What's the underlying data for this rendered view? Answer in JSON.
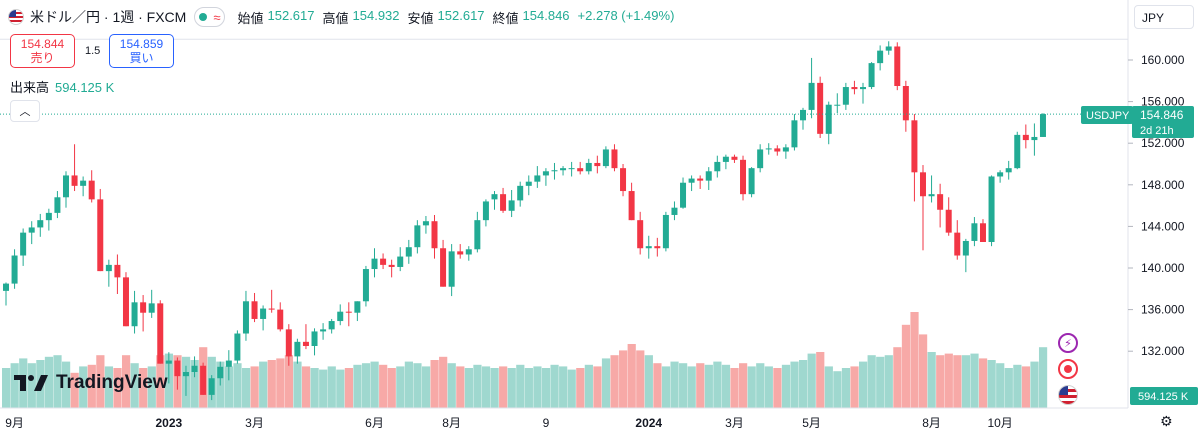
{
  "header": {
    "title": "米ドル／円 · 1週 · FXCM",
    "open_label": "始値",
    "open_value": "152.617",
    "high_label": "高値",
    "high_value": "154.932",
    "low_label": "安値",
    "low_value": "152.617",
    "close_label": "終値",
    "close_value": "154.846",
    "change": "+2.278 (+1.49%)"
  },
  "trade": {
    "sell_price": "154.844",
    "sell_label": "売り",
    "spread": "1.5",
    "buy_price": "154.859",
    "buy_label": "買い"
  },
  "volume": {
    "label": "出来高",
    "value": "594.125 K"
  },
  "currency": "JPY",
  "price_tag": {
    "symbol": "USDJPY",
    "price": "154.846",
    "countdown": "2d 21h"
  },
  "volume_tag": "594.125 K",
  "brand": "TradingView",
  "icons": {
    "collapse": "chevron-up-icon",
    "lightning": "lightning-icon",
    "record": "record-icon",
    "flag": "us-flag-icon",
    "settings": "gear-icon"
  },
  "colors": {
    "up": "#22ab94",
    "down": "#f23645",
    "vol_up": "#9fd8cf",
    "vol_down": "#f7a9a7"
  },
  "chart_data": {
    "type": "candlestick",
    "ylim": [
      128,
      162
    ],
    "y_ticks": [
      "160.000",
      "156.000",
      "152.000",
      "148.000",
      "144.000",
      "140.000",
      "136.000",
      "132.000"
    ],
    "x_ticks": [
      "9月",
      "2023",
      "3月",
      "6月",
      "8月",
      "9",
      "2024",
      "3月",
      "5月",
      "8月",
      "10月"
    ],
    "candles": [
      [
        137.8,
        138.6,
        136.4,
        138.5,
        2.5
      ],
      [
        138.5,
        141.8,
        138.0,
        141.2,
        2.8
      ],
      [
        141.2,
        143.8,
        140.2,
        143.4,
        3.1
      ],
      [
        143.4,
        144.5,
        142.3,
        143.9,
        2.8
      ],
      [
        143.9,
        145.2,
        143.0,
        144.6,
        3.0
      ],
      [
        144.6,
        145.7,
        143.6,
        145.3,
        3.2
      ],
      [
        145.3,
        147.4,
        144.8,
        146.8,
        3.3
      ],
      [
        146.8,
        149.3,
        145.8,
        148.9,
        2.9
      ],
      [
        148.9,
        151.9,
        147.4,
        147.9,
        2.2
      ],
      [
        147.9,
        148.8,
        146.9,
        148.4,
        2.6
      ],
      [
        148.4,
        149.4,
        146.3,
        146.6,
        2.7
      ],
      [
        146.6,
        147.6,
        139.7,
        139.7,
        3.3
      ],
      [
        139.7,
        140.8,
        138.2,
        140.3,
        2.6
      ],
      [
        140.3,
        141.3,
        137.5,
        139.1,
        2.5
      ],
      [
        139.1,
        139.6,
        134.4,
        134.4,
        3.3
      ],
      [
        134.4,
        137.8,
        133.7,
        136.7,
        2.8
      ],
      [
        136.7,
        137.4,
        133.9,
        135.7,
        2.5
      ],
      [
        135.7,
        137.9,
        135.2,
        136.6,
        2.6
      ],
      [
        136.6,
        136.9,
        130.8,
        130.8,
        3.3
      ],
      [
        130.8,
        131.9,
        128.9,
        131.1,
        3.4
      ],
      [
        131.1,
        131.4,
        128.3,
        129.6,
        3.3
      ],
      [
        129.6,
        130.6,
        127.7,
        130.0,
        3.2
      ],
      [
        130.0,
        131.5,
        129.5,
        130.6,
        3.0
      ],
      [
        130.6,
        130.9,
        127.8,
        127.8,
        3.8
      ],
      [
        127.8,
        129.7,
        127.3,
        129.4,
        3.2
      ],
      [
        129.4,
        131.0,
        128.7,
        130.5,
        2.9
      ],
      [
        130.5,
        132.1,
        129.2,
        131.1,
        2.6
      ],
      [
        131.1,
        134.0,
        130.8,
        133.7,
        2.8
      ],
      [
        133.7,
        137.8,
        133.0,
        136.8,
        2.5
      ],
      [
        136.8,
        137.6,
        134.8,
        135.1,
        2.6
      ],
      [
        135.1,
        136.4,
        134.0,
        136.1,
        2.9
      ],
      [
        136.1,
        137.9,
        135.7,
        136.0,
        3.0
      ],
      [
        136.0,
        136.7,
        133.9,
        134.1,
        3.1
      ],
      [
        134.1,
        134.6,
        130.6,
        131.5,
        3.3
      ],
      [
        131.5,
        133.2,
        130.8,
        132.9,
        2.9
      ],
      [
        132.9,
        134.6,
        132.2,
        132.5,
        2.6
      ],
      [
        132.5,
        134.2,
        131.6,
        133.9,
        2.5
      ],
      [
        133.9,
        134.7,
        133.1,
        134.1,
        2.4
      ],
      [
        134.1,
        135.1,
        133.7,
        134.9,
        2.6
      ],
      [
        134.9,
        136.5,
        134.5,
        135.8,
        2.4
      ],
      [
        135.8,
        136.7,
        134.4,
        135.7,
        2.5
      ],
      [
        135.7,
        136.8,
        134.9,
        136.8,
        2.7
      ],
      [
        136.8,
        140.2,
        136.3,
        139.9,
        2.8
      ],
      [
        139.9,
        141.9,
        139.1,
        140.9,
        2.9
      ],
      [
        140.9,
        141.4,
        139.9,
        140.3,
        2.7
      ],
      [
        140.3,
        140.8,
        139.1,
        140.1,
        2.5
      ],
      [
        140.1,
        142.0,
        139.7,
        141.1,
        2.6
      ],
      [
        141.1,
        142.7,
        140.4,
        142.0,
        2.9
      ],
      [
        142.0,
        144.6,
        141.4,
        144.1,
        2.8
      ],
      [
        144.1,
        145.0,
        143.3,
        144.5,
        2.6
      ],
      [
        144.5,
        145.1,
        140.9,
        141.9,
        3.0
      ],
      [
        141.9,
        142.7,
        138.2,
        138.2,
        3.2
      ],
      [
        138.2,
        142.3,
        137.3,
        141.6,
        2.8
      ],
      [
        141.6,
        142.3,
        140.9,
        141.3,
        2.6
      ],
      [
        141.3,
        142.1,
        140.7,
        141.8,
        2.5
      ],
      [
        141.8,
        145.4,
        141.5,
        144.6,
        2.7
      ],
      [
        144.6,
        146.6,
        144.0,
        146.4,
        2.6
      ],
      [
        146.6,
        147.4,
        145.6,
        147.1,
        2.5
      ],
      [
        147.1,
        147.7,
        145.3,
        145.5,
        2.6
      ],
      [
        145.5,
        147.5,
        144.9,
        146.5,
        2.5
      ],
      [
        146.5,
        148.3,
        145.9,
        147.9,
        2.7
      ],
      [
        147.9,
        148.9,
        147.0,
        148.3,
        2.5
      ],
      [
        148.3,
        149.8,
        147.7,
        148.9,
        2.6
      ],
      [
        148.9,
        149.6,
        147.9,
        149.3,
        2.5
      ],
      [
        149.3,
        150.1,
        148.5,
        149.4,
        2.7
      ],
      [
        149.4,
        149.8,
        148.9,
        149.6,
        2.6
      ],
      [
        149.6,
        150.2,
        148.8,
        149.6,
        2.4
      ],
      [
        149.6,
        150.2,
        149.0,
        149.3,
        2.5
      ],
      [
        149.3,
        150.5,
        149.0,
        150.1,
        2.7
      ],
      [
        150.1,
        150.8,
        149.1,
        149.8,
        2.6
      ],
      [
        149.8,
        151.7,
        149.6,
        151.4,
        3.1
      ],
      [
        151.4,
        151.9,
        149.3,
        149.6,
        3.3
      ],
      [
        149.6,
        150.0,
        146.9,
        147.4,
        3.6
      ],
      [
        147.4,
        148.2,
        144.6,
        144.6,
        4.0
      ],
      [
        144.6,
        145.4,
        141.3,
        141.9,
        3.6
      ],
      [
        141.9,
        143.1,
        140.9,
        142.1,
        3.3
      ],
      [
        142.1,
        142.9,
        141.1,
        141.9,
        2.8
      ],
      [
        141.9,
        145.4,
        141.6,
        145.1,
        2.6
      ],
      [
        145.1,
        146.4,
        144.6,
        145.8,
        2.9
      ],
      [
        145.8,
        148.7,
        145.7,
        148.2,
        2.8
      ],
      [
        148.2,
        148.9,
        147.4,
        148.6,
        2.6
      ],
      [
        148.6,
        148.9,
        147.6,
        148.4,
        2.8
      ],
      [
        148.4,
        149.7,
        147.5,
        149.3,
        2.7
      ],
      [
        149.3,
        150.8,
        148.7,
        150.2,
        2.9
      ],
      [
        150.2,
        150.9,
        149.5,
        150.7,
        2.7
      ],
      [
        150.7,
        150.9,
        150.1,
        150.4,
        2.5
      ],
      [
        150.4,
        150.8,
        146.5,
        147.1,
        2.8
      ],
      [
        147.1,
        149.7,
        146.8,
        149.6,
        2.6
      ],
      [
        149.6,
        151.9,
        149.2,
        151.4,
        2.8
      ],
      [
        151.4,
        152.0,
        150.9,
        151.5,
        2.6
      ],
      [
        151.5,
        151.8,
        150.8,
        151.2,
        2.5
      ],
      [
        151.2,
        151.9,
        150.5,
        151.6,
        2.7
      ],
      [
        151.6,
        154.8,
        151.3,
        154.2,
        2.9
      ],
      [
        154.2,
        155.4,
        153.3,
        155.2,
        3.0
      ],
      [
        155.2,
        160.2,
        154.4,
        157.8,
        3.4
      ],
      [
        157.8,
        158.4,
        152.5,
        152.9,
        3.5
      ],
      [
        152.9,
        156.0,
        151.9,
        155.7,
        2.6
      ],
      [
        155.7,
        156.8,
        154.9,
        155.7,
        2.3
      ],
      [
        155.7,
        157.8,
        155.2,
        157.4,
        2.5
      ],
      [
        157.4,
        158.0,
        156.7,
        157.2,
        2.6
      ],
      [
        157.2,
        157.8,
        155.8,
        157.4,
        2.9
      ],
      [
        157.4,
        159.8,
        157.2,
        159.7,
        3.3
      ],
      [
        159.7,
        161.4,
        159.0,
        160.9,
        3.2
      ],
      [
        160.9,
        161.8,
        160.5,
        161.3,
        3.3
      ],
      [
        161.3,
        161.7,
        157.1,
        157.5,
        3.8
      ],
      [
        157.5,
        158.0,
        153.1,
        154.2,
        5.2
      ],
      [
        154.2,
        154.8,
        146.4,
        149.2,
        6.0
      ],
      [
        149.2,
        149.9,
        141.7,
        146.9,
        4.6
      ],
      [
        146.9,
        148.9,
        146.3,
        147.1,
        3.5
      ],
      [
        147.1,
        148.1,
        143.9,
        145.6,
        3.3
      ],
      [
        145.6,
        146.8,
        143.1,
        143.4,
        3.4
      ],
      [
        143.4,
        144.6,
        140.8,
        141.2,
        3.3
      ],
      [
        141.2,
        142.8,
        139.6,
        142.6,
        3.3
      ],
      [
        142.6,
        144.9,
        142.1,
        144.3,
        3.4
      ],
      [
        144.3,
        144.7,
        142.5,
        142.5,
        3.1
      ],
      [
        142.5,
        148.9,
        142.1,
        148.8,
        3.0
      ],
      [
        148.8,
        149.4,
        148.2,
        149.2,
        2.8
      ],
      [
        149.2,
        150.3,
        148.5,
        149.6,
        2.5
      ],
      [
        149.6,
        153.1,
        149.5,
        152.8,
        2.7
      ],
      [
        152.8,
        153.8,
        151.5,
        152.3,
        2.6
      ],
      [
        152.3,
        153.9,
        150.8,
        152.6,
        2.9
      ],
      [
        152.6,
        154.9,
        152.6,
        154.8,
        3.8
      ]
    ]
  }
}
